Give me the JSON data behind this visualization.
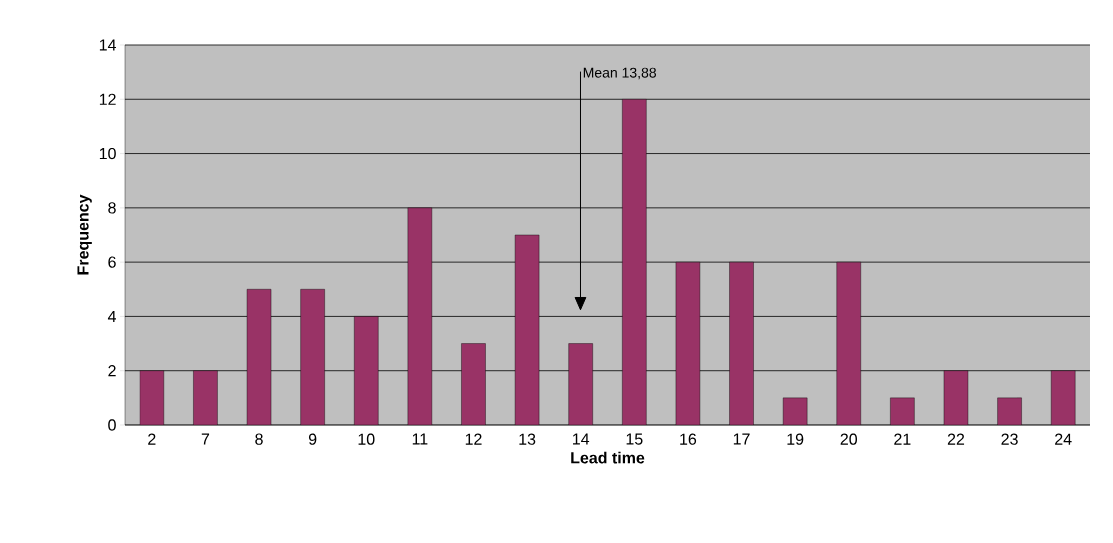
{
  "chart_data": {
    "type": "bar",
    "xlabel": "Lead time",
    "ylabel": "Frequency",
    "categories": [
      "2",
      "7",
      "8",
      "9",
      "10",
      "11",
      "12",
      "13",
      "14",
      "15",
      "16",
      "17",
      "19",
      "20",
      "21",
      "22",
      "23",
      "24"
    ],
    "values": [
      2,
      2,
      5,
      5,
      4,
      8,
      3,
      7,
      3,
      12,
      6,
      6,
      1,
      6,
      1,
      2,
      1,
      2
    ],
    "color": "#993366",
    "ylim": [
      0,
      14
    ],
    "yticks": [
      0,
      2,
      4,
      6,
      8,
      10,
      12,
      14
    ],
    "grid": "y",
    "annotations": [
      "Mean 13,88"
    ]
  }
}
